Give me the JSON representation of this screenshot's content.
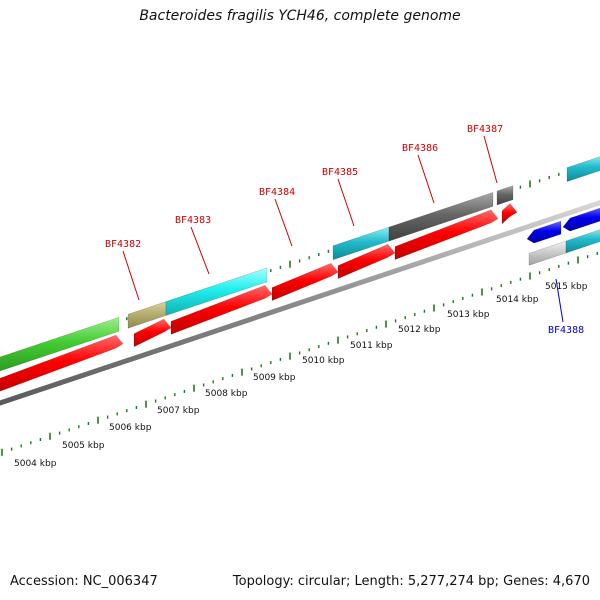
{
  "title": "Bacteroides fragilis YCH46, complete genome",
  "footer": {
    "accession": "Accession: NC_006347",
    "summary": "Topology: circular; Length: 5,277,274 bp; Genes: 4,670"
  },
  "kbp_labels": [
    "5004 kbp",
    "5005 kbp",
    "5006 kbp",
    "5007 kbp",
    "5008 kbp",
    "5009 kbp",
    "5010 kbp",
    "5011 kbp",
    "5012 kbp",
    "5013 kbp",
    "5014 kbp",
    "5015 kbp"
  ],
  "gene_labels": [
    {
      "text": "BF4382",
      "color": "#cc0000"
    },
    {
      "text": "BF4383",
      "color": "#cc0000"
    },
    {
      "text": "BF4384",
      "color": "#cc0000"
    },
    {
      "text": "BF4385",
      "color": "#cc0000"
    },
    {
      "text": "BF4386",
      "color": "#cc0000"
    },
    {
      "text": "BF4387",
      "color": "#cc0000"
    },
    {
      "text": "BF4388",
      "color": "#0000cc"
    }
  ],
  "colors": {
    "forward_gene": "#ff0000",
    "reverse_gene": "#0000ee",
    "tick": "#1a7a1a",
    "backbone": "#888888",
    "cog_green": "#44cc33",
    "cog_khaki": "#b5b070",
    "cog_cyan": "#22dddd",
    "cog_dark_cyan": "#22bbcc",
    "cog_dark_grey": "#666666",
    "cog_light_grey": "#cccccc",
    "cog_teal": "#22cccc"
  }
}
